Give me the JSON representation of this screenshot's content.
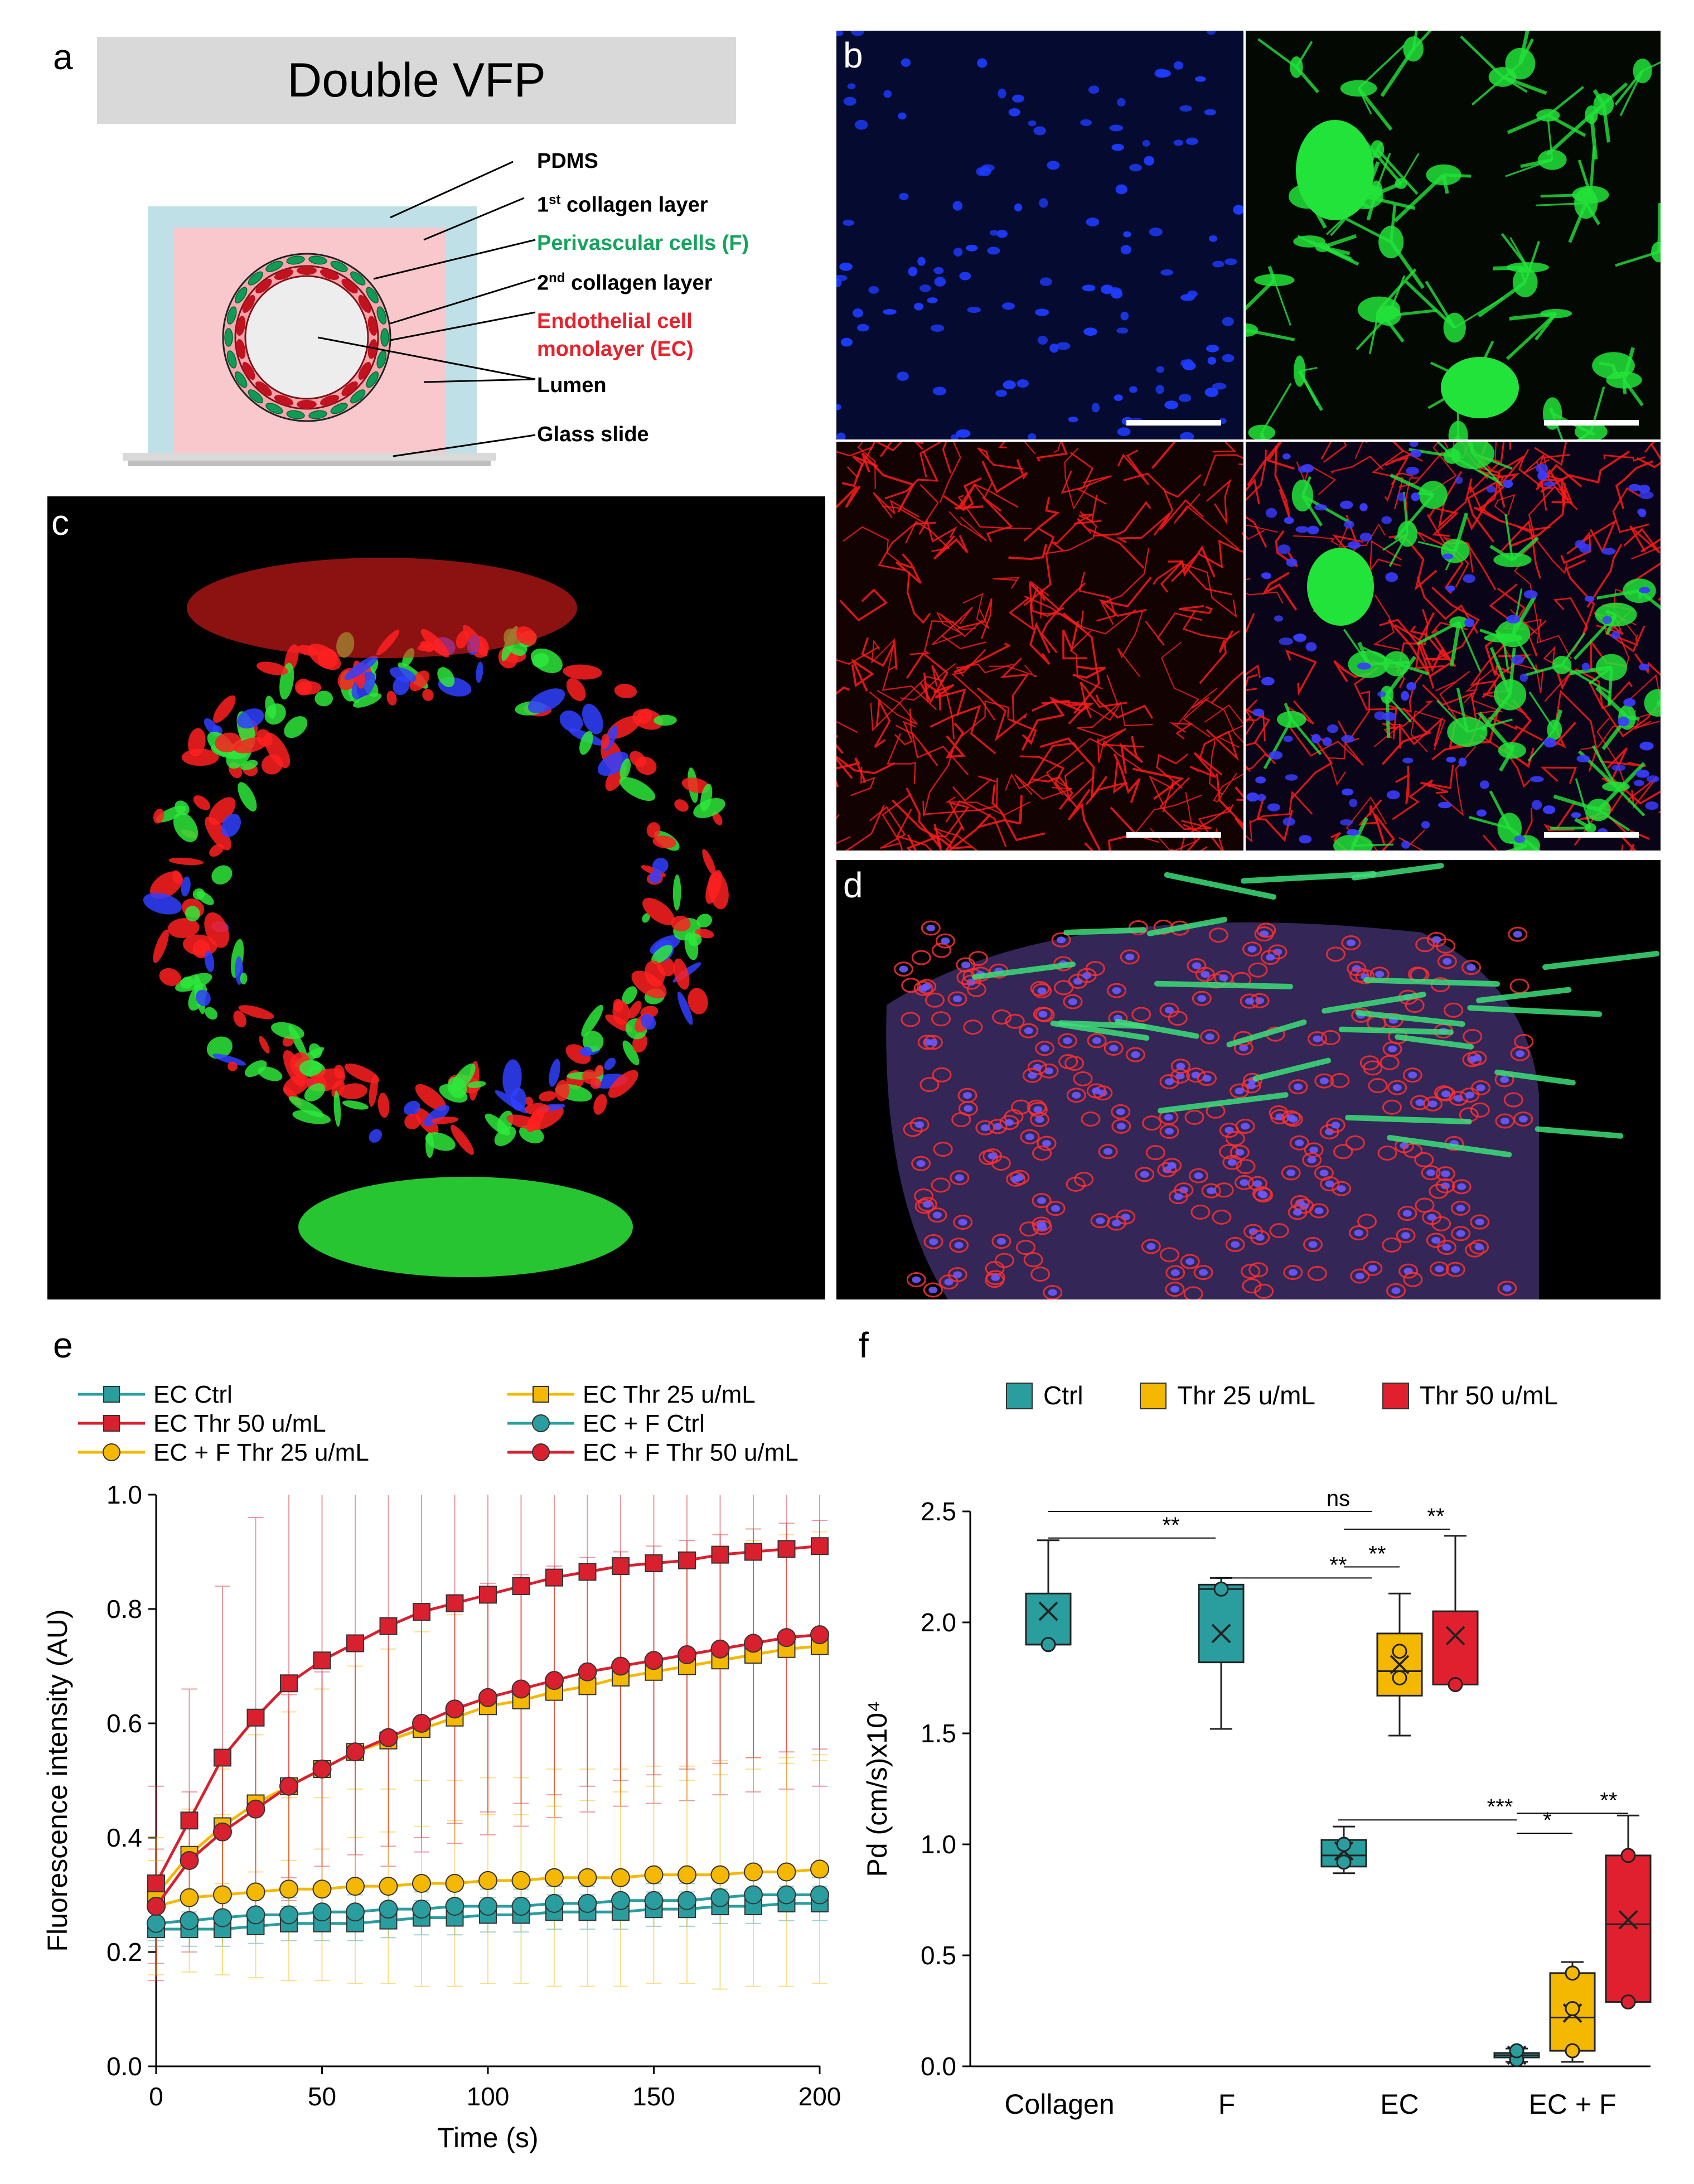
{
  "panel_a": {
    "letter": "a",
    "title": "Double VFP",
    "labels": {
      "pdms": "PDMS",
      "collagen1_num": "1",
      "collagen1_sup": "st",
      "collagen1_rest": " collagen layer",
      "perivascular": "Perivascular cells (F)",
      "collagen2_num": "2",
      "collagen2_sup": "nd",
      "collagen2_rest": " collagen layer",
      "endothelial_line1": "Endothelial cell",
      "endothelial_line2": "monolayer (EC)",
      "lumen": "Lumen",
      "glass": "Glass slide"
    },
    "colors": {
      "pdms": "#bfe0e6",
      "collagen": "#f8c8cc",
      "endothelial": "#e8212b",
      "perivascular": "#0f9a55"
    }
  },
  "panel_b": {
    "letter": "b"
  },
  "panel_c": {
    "letter": "c"
  },
  "panel_d": {
    "letter": "d"
  },
  "panel_e": {
    "letter": "e"
  },
  "panel_f": {
    "letter": "f"
  },
  "chart_data": [
    {
      "type": "line",
      "panel": "e",
      "xlabel": "Time (s)",
      "ylabel": "Fluorescence intensity (AU)",
      "xlim": [
        0,
        200
      ],
      "ylim": [
        0.0,
        1.0
      ],
      "xticks": [
        "0",
        "50",
        "100",
        "150",
        "200"
      ],
      "yticks": [
        "0.0",
        "0.2",
        "0.4",
        "0.6",
        "0.8",
        "1.0"
      ],
      "x": [
        0,
        10,
        20,
        30,
        40,
        50,
        60,
        70,
        80,
        90,
        100,
        110,
        120,
        130,
        140,
        150,
        160,
        170,
        180,
        190,
        200
      ],
      "legend_placement": "top",
      "series": [
        {
          "name": "EC Ctrl",
          "marker": "square",
          "color": "#2a9d9f",
          "values": [
            0.24,
            0.24,
            0.24,
            0.245,
            0.25,
            0.25,
            0.25,
            0.255,
            0.26,
            0.26,
            0.265,
            0.265,
            0.27,
            0.27,
            0.27,
            0.275,
            0.275,
            0.28,
            0.28,
            0.285,
            0.285
          ],
          "error": [
            0.03,
            0.03,
            0.03,
            0.03,
            0.03,
            0.03,
            0.03,
            0.03,
            0.03,
            0.03,
            0.03,
            0.03,
            0.03,
            0.03,
            0.03,
            0.03,
            0.03,
            0.03,
            0.03,
            0.03,
            0.03
          ]
        },
        {
          "name": "EC Thr 25 u/mL",
          "marker": "square",
          "color": "#f5b800",
          "values": [
            0.3,
            0.37,
            0.42,
            0.46,
            0.49,
            0.52,
            0.55,
            0.57,
            0.59,
            0.61,
            0.63,
            0.64,
            0.655,
            0.665,
            0.68,
            0.69,
            0.7,
            0.71,
            0.72,
            0.73,
            0.735
          ],
          "error": [
            0.06,
            0.08,
            0.1,
            0.12,
            0.13,
            0.14,
            0.15,
            0.16,
            0.17,
            0.18,
            0.19,
            0.2,
            0.2,
            0.2,
            0.2,
            0.2,
            0.2,
            0.2,
            0.2,
            0.2,
            0.2
          ]
        },
        {
          "name": "EC Thr 50 u/mL",
          "marker": "square",
          "color": "#d8202f",
          "values": [
            0.32,
            0.43,
            0.54,
            0.61,
            0.67,
            0.71,
            0.74,
            0.77,
            0.795,
            0.81,
            0.825,
            0.84,
            0.855,
            0.865,
            0.875,
            0.88,
            0.885,
            0.895,
            0.9,
            0.905,
            0.91
          ],
          "error": [
            0.17,
            0.23,
            0.3,
            0.35,
            0.38,
            0.4,
            0.42,
            0.42,
            0.42,
            0.42,
            0.42,
            0.42,
            0.42,
            0.42,
            0.42,
            0.42,
            0.42,
            0.42,
            0.42,
            0.42,
            0.42
          ]
        },
        {
          "name": "EC + F Ctrl",
          "marker": "circle",
          "color": "#2a9d9f",
          "values": [
            0.25,
            0.255,
            0.26,
            0.265,
            0.265,
            0.27,
            0.27,
            0.275,
            0.275,
            0.28,
            0.28,
            0.28,
            0.285,
            0.285,
            0.29,
            0.29,
            0.29,
            0.295,
            0.3,
            0.3,
            0.3
          ],
          "error": [
            0.03,
            0.03,
            0.03,
            0.03,
            0.03,
            0.03,
            0.03,
            0.03,
            0.03,
            0.03,
            0.03,
            0.03,
            0.03,
            0.03,
            0.03,
            0.03,
            0.03,
            0.03,
            0.03,
            0.03,
            0.03
          ]
        },
        {
          "name": "EC + F Thr 25 u/mL",
          "marker": "circle",
          "color": "#f5b800",
          "values": [
            0.28,
            0.295,
            0.3,
            0.305,
            0.31,
            0.31,
            0.315,
            0.315,
            0.32,
            0.32,
            0.325,
            0.325,
            0.33,
            0.33,
            0.33,
            0.335,
            0.335,
            0.335,
            0.34,
            0.34,
            0.345
          ],
          "error": [
            0.12,
            0.13,
            0.14,
            0.15,
            0.16,
            0.16,
            0.17,
            0.17,
            0.18,
            0.18,
            0.18,
            0.18,
            0.19,
            0.19,
            0.19,
            0.19,
            0.19,
            0.2,
            0.2,
            0.2,
            0.2
          ]
        },
        {
          "name": "EC + F Thr 50 u/mL",
          "marker": "circle",
          "color": "#d8202f",
          "values": [
            0.28,
            0.36,
            0.41,
            0.45,
            0.49,
            0.52,
            0.55,
            0.575,
            0.6,
            0.625,
            0.645,
            0.66,
            0.675,
            0.69,
            0.7,
            0.71,
            0.72,
            0.73,
            0.74,
            0.75,
            0.755
          ],
          "error": [
            0.1,
            0.12,
            0.14,
            0.15,
            0.16,
            0.17,
            0.18,
            0.19,
            0.2,
            0.2,
            0.2,
            0.2,
            0.2,
            0.2,
            0.2,
            0.2,
            0.2,
            0.2,
            0.2,
            0.2,
            0.2
          ]
        }
      ]
    },
    {
      "type": "box",
      "panel": "f",
      "ylabel": "Pd (cm/s)x10⁴",
      "ylim": [
        0.0,
        2.5
      ],
      "yticks": [
        "0.0",
        "0.5",
        "1.0",
        "1.5",
        "2.0",
        "2.5"
      ],
      "categories": [
        "Collagen",
        "F",
        "EC",
        "EC + F"
      ],
      "legend": [
        {
          "name": "Ctrl",
          "color": "#2a9d9f"
        },
        {
          "name": "Thr 25 u/mL",
          "color": "#f5b800"
        },
        {
          "name": "Thr 50 u/mL",
          "color": "#e0202f"
        }
      ],
      "legend_placement": "top",
      "boxes": [
        {
          "category": "Collagen",
          "group": "Ctrl",
          "min": 1.9,
          "q1": 1.9,
          "median": 1.9,
          "q3": 2.13,
          "max": 2.37,
          "mean": 2.05,
          "points": [
            1.9
          ]
        },
        {
          "category": "F",
          "group": "Ctrl",
          "min": 1.52,
          "q1": 1.82,
          "median": 2.15,
          "q3": 2.17,
          "max": 2.2,
          "mean": 1.95,
          "points": [
            2.15
          ]
        },
        {
          "category": "EC",
          "group": "Ctrl",
          "min": 0.87,
          "q1": 0.9,
          "median": 0.95,
          "q3": 1.02,
          "max": 1.08,
          "mean": 0.97,
          "points": [
            0.92,
            1.0
          ]
        },
        {
          "category": "EC",
          "group": "Thr 25 u/mL",
          "min": 1.49,
          "q1": 1.67,
          "median": 1.78,
          "q3": 1.95,
          "max": 2.13,
          "mean": 1.81,
          "points": [
            1.75,
            1.87
          ]
        },
        {
          "category": "EC",
          "group": "Thr 50 u/mL",
          "min": 1.72,
          "q1": 1.72,
          "median": 1.72,
          "q3": 2.05,
          "max": 2.39,
          "mean": 1.94,
          "points": [
            1.72
          ]
        },
        {
          "category": "EC + F",
          "group": "Ctrl",
          "min": 0.02,
          "q1": 0.04,
          "median": 0.05,
          "q3": 0.06,
          "max": 0.08,
          "mean": 0.05,
          "points": [
            0.03,
            0.07
          ]
        },
        {
          "category": "EC + F",
          "group": "Thr 25 u/mL",
          "min": 0.02,
          "q1": 0.07,
          "median": 0.22,
          "q3": 0.42,
          "max": 0.47,
          "mean": 0.24,
          "points": [
            0.07,
            0.26,
            0.42
          ]
        },
        {
          "category": "EC + F",
          "group": "Thr 50 u/mL",
          "min": 0.29,
          "q1": 0.29,
          "median": 0.64,
          "q3": 0.95,
          "max": 1.13,
          "mean": 0.66,
          "points": [
            0.29,
            0.95
          ]
        }
      ],
      "annotations": [
        "ns",
        "**",
        "**",
        "**",
        "**",
        "***",
        "*",
        "**"
      ]
    }
  ]
}
